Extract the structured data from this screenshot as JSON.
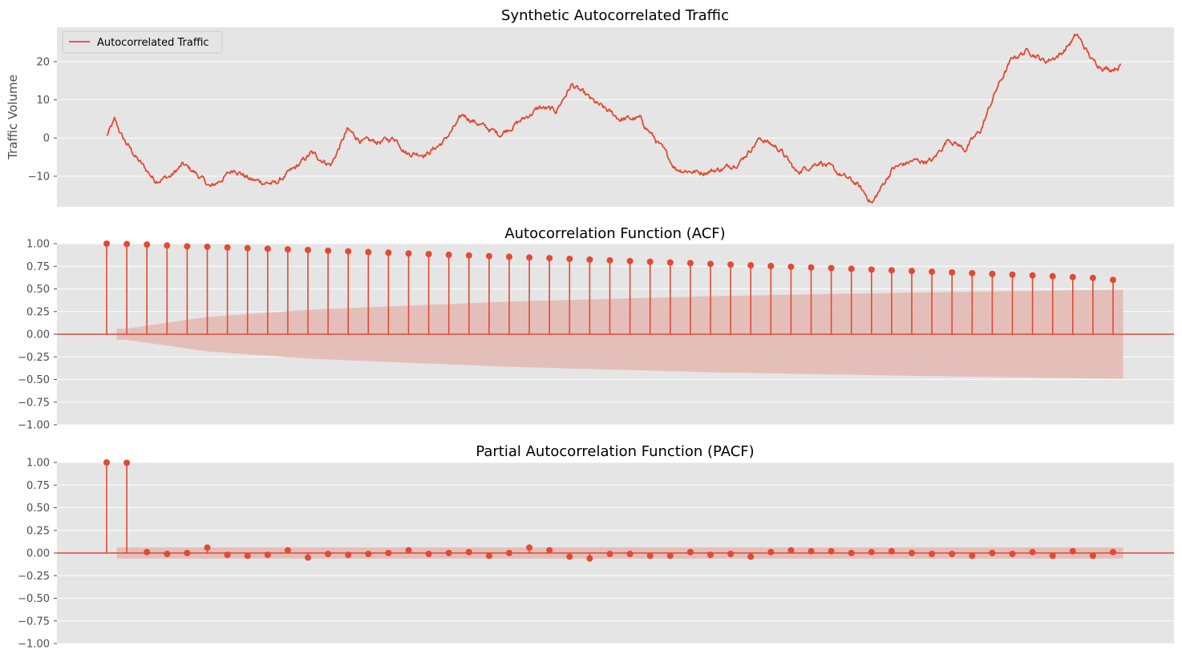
{
  "colors": {
    "accent": "#E24A33",
    "panel_bg": "#E5E5E5",
    "grid": "#FFFFFF",
    "band": "#E4B8B3"
  },
  "chart_data": [
    {
      "type": "line",
      "title": "Synthetic Autocorrelated Traffic",
      "ylabel": "Traffic Volume",
      "xlabel": "",
      "legend": {
        "placement": "top-left",
        "entries": [
          "Autocorrelated Traffic"
        ]
      },
      "ylim": [
        -18,
        29
      ],
      "yticks": [
        -10,
        0,
        10,
        20
      ],
      "grid": true,
      "x_tick_labels": false,
      "n_points": 1000,
      "series": [
        {
          "name": "Autocorrelated Traffic",
          "keypoints": [
            [
              0,
              0.5
            ],
            [
              10,
              4.5
            ],
            [
              20,
              0
            ],
            [
              40,
              -6
            ],
            [
              60,
              -11
            ],
            [
              80,
              -10
            ],
            [
              95,
              -7
            ],
            [
              110,
              -9
            ],
            [
              130,
              -13
            ],
            [
              160,
              -8
            ],
            [
              180,
              -11
            ],
            [
              210,
              -12
            ],
            [
              235,
              -8
            ],
            [
              255,
              -4
            ],
            [
              280,
              -7
            ],
            [
              300,
              2
            ],
            [
              320,
              -1
            ],
            [
              340,
              -1
            ],
            [
              360,
              0
            ],
            [
              375,
              -4
            ],
            [
              400,
              -4
            ],
            [
              420,
              -1
            ],
            [
              445,
              6
            ],
            [
              470,
              3
            ],
            [
              490,
              1
            ],
            [
              520,
              5
            ],
            [
              540,
              8
            ],
            [
              560,
              7
            ],
            [
              580,
              14
            ],
            [
              610,
              9
            ],
            [
              640,
              5
            ],
            [
              665,
              5
            ],
            [
              690,
              -2
            ],
            [
              710,
              -8
            ],
            [
              740,
              -9
            ],
            [
              770,
              -8
            ],
            [
              790,
              -6
            ],
            [
              815,
              0
            ],
            [
              840,
              -3
            ],
            [
              860,
              -9
            ],
            [
              890,
              -6
            ],
            [
              910,
              -9
            ],
            [
              935,
              -12
            ],
            [
              955,
              -17
            ],
            [
              980,
              -8
            ],
            [
              1005,
              -6
            ],
            [
              1030,
              -6
            ],
            [
              1050,
              0
            ],
            [
              1070,
              -3
            ],
            [
              1090,
              2
            ],
            [
              1110,
              13
            ],
            [
              1130,
              21
            ],
            [
              1150,
              23
            ],
            [
              1170,
              20
            ],
            [
              1190,
              22
            ],
            [
              1210,
              27
            ],
            [
              1230,
              20
            ],
            [
              1250,
              18
            ],
            [
              1265,
              19
            ]
          ]
        }
      ]
    },
    {
      "type": "stem",
      "title": "Autocorrelation Function (ACF)",
      "ylim": [
        -1.0,
        1.0
      ],
      "yticks": [
        1.0,
        0.75,
        0.5,
        0.25,
        0.0,
        -0.25,
        -0.5,
        -0.75,
        -1.0
      ],
      "ytick_labels": [
        "1.00",
        "0.75",
        "0.50",
        "0.25",
        "0.00",
        "−0.25",
        "−0.50",
        "−0.75",
        "−1.00"
      ],
      "lags": [
        0,
        1,
        2,
        3,
        4,
        5,
        6,
        7,
        8,
        9,
        10,
        11,
        12,
        13,
        14,
        15,
        16,
        17,
        18,
        19,
        20,
        21,
        22,
        23,
        24,
        25,
        26,
        27,
        28,
        29,
        30,
        31,
        32,
        33,
        34,
        35,
        36,
        37,
        38,
        39,
        40,
        41,
        42,
        43,
        44,
        45,
        46,
        47,
        48,
        49,
        50
      ],
      "values": [
        1.0,
        0.996,
        0.99,
        0.98,
        0.97,
        0.965,
        0.958,
        0.95,
        0.944,
        0.937,
        0.93,
        0.922,
        0.915,
        0.907,
        0.9,
        0.892,
        0.885,
        0.877,
        0.87,
        0.862,
        0.855,
        0.847,
        0.84,
        0.832,
        0.824,
        0.816,
        0.808,
        0.8,
        0.792,
        0.785,
        0.777,
        0.769,
        0.761,
        0.753,
        0.745,
        0.737,
        0.73,
        0.722,
        0.714,
        0.706,
        0.698,
        0.69,
        0.682,
        0.674,
        0.666,
        0.658,
        0.649,
        0.64,
        0.631,
        0.622,
        0.6
      ],
      "confidence_band": {
        "lags": [
          1,
          5,
          10,
          20,
          30,
          40,
          50
        ],
        "upper": [
          0.062,
          0.19,
          0.27,
          0.36,
          0.42,
          0.46,
          0.49
        ]
      },
      "grid": true,
      "x_tick_labels": false
    },
    {
      "type": "stem",
      "title": "Partial Autocorrelation Function (PACF)",
      "ylim": [
        -1.0,
        1.0
      ],
      "yticks": [
        1.0,
        0.75,
        0.5,
        0.25,
        0.0,
        -0.25,
        -0.5,
        -0.75,
        -1.0
      ],
      "ytick_labels": [
        "1.00",
        "0.75",
        "0.50",
        "0.25",
        "0.00",
        "−0.25",
        "−0.50",
        "−0.75",
        "−1.00"
      ],
      "lags": [
        0,
        1,
        2,
        3,
        4,
        5,
        6,
        7,
        8,
        9,
        10,
        11,
        12,
        13,
        14,
        15,
        16,
        17,
        18,
        19,
        20,
        21,
        22,
        23,
        24,
        25,
        26,
        27,
        28,
        29,
        30,
        31,
        32,
        33,
        34,
        35,
        36,
        37,
        38,
        39,
        40,
        41,
        42,
        43,
        44,
        45,
        46,
        47,
        48,
        49,
        50
      ],
      "values": [
        1.0,
        0.996,
        0.01,
        -0.01,
        0.0,
        0.06,
        -0.02,
        -0.03,
        -0.02,
        0.03,
        -0.05,
        -0.01,
        -0.02,
        -0.01,
        0.0,
        0.03,
        -0.01,
        0.0,
        0.01,
        -0.03,
        0.0,
        0.06,
        0.03,
        -0.04,
        -0.06,
        -0.01,
        -0.01,
        -0.03,
        -0.03,
        0.01,
        -0.02,
        -0.01,
        -0.04,
        0.01,
        0.03,
        0.02,
        0.02,
        0.0,
        0.01,
        0.02,
        0.0,
        -0.01,
        -0.01,
        -0.03,
        0.0,
        -0.01,
        0.01,
        -0.03,
        0.02,
        -0.03,
        0.01
      ],
      "confidence_band": {
        "lags": [
          1,
          50
        ],
        "upper": [
          0.062,
          0.062
        ]
      },
      "grid": true,
      "x_tick_labels": false
    }
  ]
}
